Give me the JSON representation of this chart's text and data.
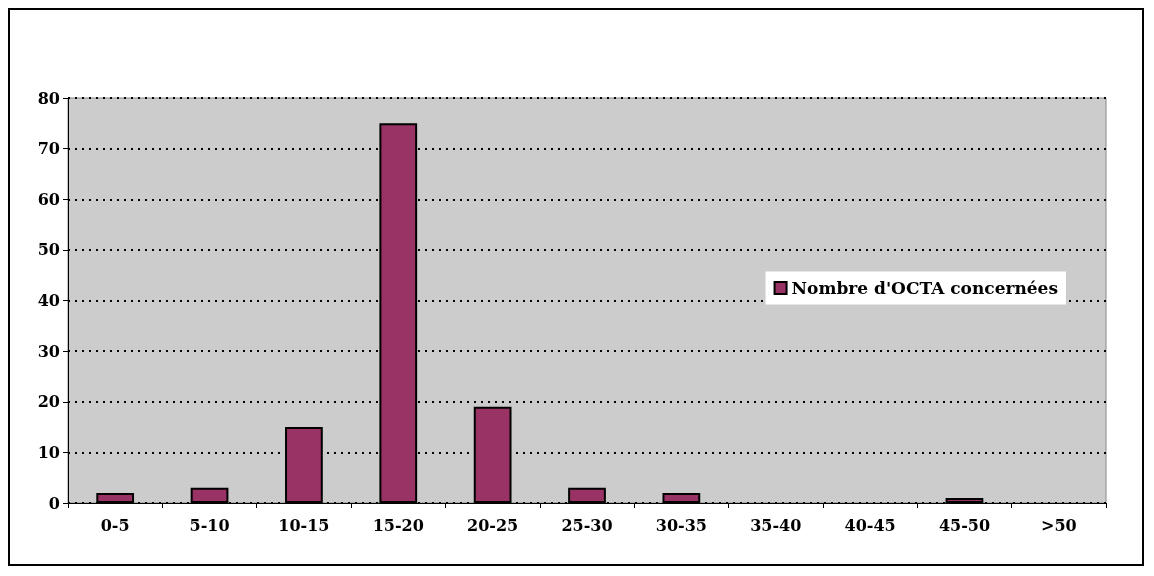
{
  "chart_data": {
    "type": "bar",
    "categories": [
      "0-5",
      "5-10",
      "10-15",
      "15-20",
      "20-25",
      "25-30",
      "30-35",
      "35-40",
      "40-45",
      "45-50",
      ">50"
    ],
    "series": [
      {
        "name": "Nombre d'OCTA concernées",
        "color": "#993366",
        "values": [
          2,
          3,
          15,
          75,
          19,
          3,
          2,
          0,
          0,
          1,
          0
        ]
      }
    ],
    "ylim": [
      0,
      80
    ],
    "yticks": [
      0,
      10,
      20,
      30,
      40,
      50,
      60,
      70,
      80
    ],
    "grid": "y",
    "legend": "right"
  }
}
